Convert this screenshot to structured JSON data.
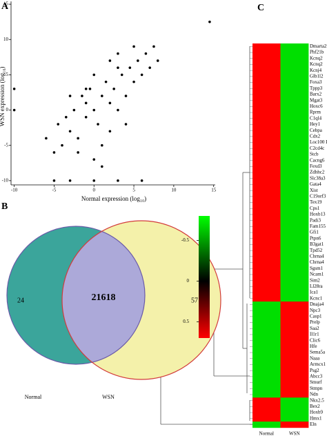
{
  "chart_data": [
    {
      "type": "scatter",
      "panel": "A",
      "xlabel": "Normal expression (log₁₀)",
      "ylabel": "WSN expression (log₁₀)",
      "xlim": [
        -10.4,
        15.2
      ],
      "ylim": [
        -10.6,
        15.4
      ],
      "xticks": [
        -10,
        -5,
        0,
        5,
        10,
        15
      ],
      "yticks": [
        -10,
        -5,
        0,
        5,
        10,
        15
      ],
      "color": "#000000",
      "x": [
        -6,
        -5,
        -4.5,
        -4,
        -3.5,
        -3,
        -2.5,
        -2,
        -1.5,
        -1,
        -0.5,
        0,
        0.5,
        1,
        1.5,
        2,
        2.5,
        3,
        3.5,
        4,
        4.5,
        5,
        5.5,
        6,
        6.5,
        7,
        7.5,
        8,
        -2,
        -1,
        0,
        1,
        2,
        3,
        -3,
        0,
        2,
        4,
        1,
        -1,
        3,
        5,
        14.5,
        -5,
        -3,
        0,
        3,
        6,
        -10,
        -10
      ],
      "y": [
        -4,
        -6,
        -2,
        -5,
        -1,
        -3,
        0,
        -4,
        2,
        -1,
        3,
        0,
        -2,
        2,
        4,
        1,
        3,
        0,
        5,
        2,
        6,
        4,
        7,
        5,
        8,
        6,
        9,
        7,
        -6,
        3,
        5,
        -5,
        -3,
        6,
        2,
        -7,
        7,
        -2,
        -8,
        1,
        8,
        9,
        12.5,
        -10,
        -10,
        -10,
        -10,
        -10,
        0,
        3
      ]
    },
    {
      "type": "venn",
      "panel": "B",
      "sets": [
        {
          "name": "Normal",
          "color": "#3ba59b",
          "only": 24
        },
        {
          "name": "WSN",
          "color": "#f4f1aa",
          "only": 57
        }
      ],
      "intersection": 21618,
      "intersection_color": "#aca9d9"
    },
    {
      "type": "heatmap",
      "panel": "C",
      "columns": [
        "Normal",
        "WSN"
      ],
      "rows": [
        "Dmarta2",
        "Phf21b",
        "Kcnq2",
        "Kcnq2",
        "Kcnj4",
        "Glb1l2",
        "Foxa3",
        "Tppp3",
        "Barx2",
        "Mgat3",
        "Hoxc6",
        "Rprm",
        "C1ql4",
        "Hey1",
        "Cebpa",
        "Cdx2",
        "Loc100 I",
        "C2cd4c",
        "Stcb",
        "Cacng6",
        "Fexd3",
        "Zdhhc2",
        "Slc38a3",
        "Gata4",
        "Xist",
        "C19orf3",
        "Tex19",
        "Cps1",
        "Hoxb13",
        "Padi3",
        "Fam155",
        "Gfi1",
        "Ptpn6",
        "B3gat1",
        "Tpd52",
        "Chrna4",
        "Chrna4",
        "Sgsm1",
        "Ncam1",
        "Sim2",
        "Ll28ra",
        "Ica1",
        "Kcnc1",
        "Dnaja4",
        "Npc3",
        "Casp1",
        "Prelp",
        "Saa2",
        "Il1r1",
        "Clic6",
        "Hfe",
        "Sema5a",
        "Naaa",
        "Armcx1",
        "Psg2",
        "Abcc3",
        "Smurf",
        "Stmpn",
        "Ndn",
        "Nkx2.5",
        "Bex2",
        "Hoxb9",
        "Hmx1",
        "Eln"
      ],
      "values": [
        [
          0.7,
          -0.7
        ],
        [
          0.7,
          -0.7
        ],
        [
          0.7,
          -0.7
        ],
        [
          0.7,
          -0.7
        ],
        [
          0.7,
          -0.7
        ],
        [
          0.7,
          -0.7
        ],
        [
          0.7,
          -0.7
        ],
        [
          0.7,
          -0.7
        ],
        [
          0.7,
          -0.7
        ],
        [
          0.7,
          -0.7
        ],
        [
          0.7,
          -0.7
        ],
        [
          0.7,
          -0.7
        ],
        [
          0.7,
          -0.7
        ],
        [
          0.7,
          -0.7
        ],
        [
          0.7,
          -0.7
        ],
        [
          0.7,
          -0.7
        ],
        [
          0.7,
          -0.7
        ],
        [
          0.7,
          -0.7
        ],
        [
          0.7,
          -0.7
        ],
        [
          0.7,
          -0.7
        ],
        [
          0.7,
          -0.7
        ],
        [
          0.7,
          -0.7
        ],
        [
          0.7,
          -0.7
        ],
        [
          0.7,
          -0.7
        ],
        [
          0.7,
          -0.7
        ],
        [
          0.7,
          -0.7
        ],
        [
          0.7,
          -0.7
        ],
        [
          0.7,
          -0.7
        ],
        [
          0.7,
          -0.7
        ],
        [
          0.7,
          -0.7
        ],
        [
          0.7,
          -0.7
        ],
        [
          0.7,
          -0.7
        ],
        [
          0.7,
          -0.7
        ],
        [
          0.7,
          -0.7
        ],
        [
          0.7,
          -0.7
        ],
        [
          0.7,
          -0.7
        ],
        [
          0.7,
          -0.7
        ],
        [
          0.7,
          -0.7
        ],
        [
          0.7,
          -0.7
        ],
        [
          0.7,
          -0.7
        ],
        [
          0.7,
          -0.7
        ],
        [
          0.7,
          -0.7
        ],
        [
          0.7,
          -0.7
        ],
        [
          -0.7,
          0.7
        ],
        [
          -0.7,
          0.7
        ],
        [
          -0.7,
          0.7
        ],
        [
          -0.7,
          0.7
        ],
        [
          -0.7,
          0.7
        ],
        [
          -0.7,
          0.7
        ],
        [
          -0.7,
          0.7
        ],
        [
          -0.7,
          0.7
        ],
        [
          -0.7,
          0.7
        ],
        [
          -0.7,
          0.7
        ],
        [
          -0.7,
          0.7
        ],
        [
          -0.7,
          0.7
        ],
        [
          -0.7,
          0.7
        ],
        [
          -0.7,
          0.7
        ],
        [
          -0.7,
          0.7
        ],
        [
          -0.7,
          0.7
        ],
        [
          0.7,
          -0.7
        ],
        [
          0.7,
          -0.7
        ],
        [
          0.7,
          -0.7
        ],
        [
          0.7,
          -0.7
        ],
        [
          -0.7,
          0.7
        ]
      ],
      "colorbar": {
        "lim": [
          -0.8,
          0.7
        ],
        "ticks": [
          -0.5,
          0,
          0.5
        ],
        "colors": [
          "#00ff00",
          "#000000",
          "#ff0000"
        ]
      }
    }
  ]
}
